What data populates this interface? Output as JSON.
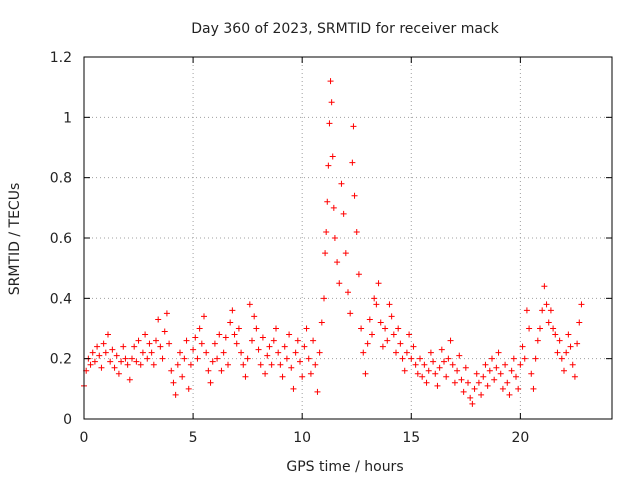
{
  "chart_data": {
    "type": "scatter",
    "title": "Day 360 of 2023, SRMTID for receiver mack",
    "xlabel": "GPS time / hours",
    "ylabel": "SRMTID / TECUs",
    "xlim": [
      0,
      24.2
    ],
    "ylim": [
      0,
      1.2
    ],
    "x_ticks": [
      0,
      5,
      10,
      15,
      20
    ],
    "x_tick_labels": [
      "0",
      "5",
      "10",
      "15",
      "20"
    ],
    "y_ticks": [
      0,
      0.2,
      0.4,
      0.6,
      0.8,
      1.0,
      1.2
    ],
    "y_tick_labels": [
      "0",
      "0.2",
      "0.4",
      "0.6",
      "0.8",
      "1",
      "1.2"
    ],
    "grid": true,
    "marker": "plus",
    "color": "#ff0000",
    "series": [
      {
        "name": "mack",
        "points": [
          [
            0.0,
            0.11
          ],
          [
            0.1,
            0.16
          ],
          [
            0.2,
            0.2
          ],
          [
            0.3,
            0.18
          ],
          [
            0.4,
            0.22
          ],
          [
            0.5,
            0.19
          ],
          [
            0.6,
            0.24
          ],
          [
            0.7,
            0.21
          ],
          [
            0.8,
            0.17
          ],
          [
            0.9,
            0.25
          ],
          [
            1.0,
            0.22
          ],
          [
            1.1,
            0.28
          ],
          [
            1.2,
            0.19
          ],
          [
            1.3,
            0.23
          ],
          [
            1.4,
            0.17
          ],
          [
            1.5,
            0.21
          ],
          [
            1.6,
            0.15
          ],
          [
            1.7,
            0.19
          ],
          [
            1.8,
            0.24
          ],
          [
            1.9,
            0.2
          ],
          [
            2.0,
            0.18
          ],
          [
            2.1,
            0.13
          ],
          [
            2.2,
            0.2
          ],
          [
            2.3,
            0.24
          ],
          [
            2.4,
            0.19
          ],
          [
            2.5,
            0.26
          ],
          [
            2.6,
            0.18
          ],
          [
            2.7,
            0.22
          ],
          [
            2.8,
            0.28
          ],
          [
            2.9,
            0.2
          ],
          [
            3.0,
            0.25
          ],
          [
            3.1,
            0.22
          ],
          [
            3.2,
            0.18
          ],
          [
            3.3,
            0.26
          ],
          [
            3.4,
            0.33
          ],
          [
            3.5,
            0.24
          ],
          [
            3.6,
            0.2
          ],
          [
            3.7,
            0.29
          ],
          [
            3.8,
            0.35
          ],
          [
            3.9,
            0.25
          ],
          [
            4.0,
            0.16
          ],
          [
            4.1,
            0.12
          ],
          [
            4.2,
            0.08
          ],
          [
            4.3,
            0.18
          ],
          [
            4.4,
            0.22
          ],
          [
            4.5,
            0.14
          ],
          [
            4.6,
            0.2
          ],
          [
            4.7,
            0.26
          ],
          [
            4.8,
            0.1
          ],
          [
            4.9,
            0.18
          ],
          [
            5.0,
            0.23
          ],
          [
            5.1,
            0.27
          ],
          [
            5.2,
            0.2
          ],
          [
            5.3,
            0.3
          ],
          [
            5.4,
            0.25
          ],
          [
            5.5,
            0.34
          ],
          [
            5.6,
            0.22
          ],
          [
            5.7,
            0.16
          ],
          [
            5.8,
            0.12
          ],
          [
            5.9,
            0.19
          ],
          [
            6.0,
            0.25
          ],
          [
            6.1,
            0.2
          ],
          [
            6.2,
            0.28
          ],
          [
            6.3,
            0.16
          ],
          [
            6.4,
            0.22
          ],
          [
            6.5,
            0.27
          ],
          [
            6.6,
            0.18
          ],
          [
            6.7,
            0.32
          ],
          [
            6.8,
            0.36
          ],
          [
            6.9,
            0.28
          ],
          [
            7.0,
            0.25
          ],
          [
            7.1,
            0.3
          ],
          [
            7.2,
            0.22
          ],
          [
            7.3,
            0.18
          ],
          [
            7.4,
            0.14
          ],
          [
            7.5,
            0.2
          ],
          [
            7.6,
            0.38
          ],
          [
            7.7,
            0.26
          ],
          [
            7.8,
            0.34
          ],
          [
            7.9,
            0.3
          ],
          [
            8.0,
            0.23
          ],
          [
            8.1,
            0.18
          ],
          [
            8.2,
            0.27
          ],
          [
            8.3,
            0.15
          ],
          [
            8.4,
            0.21
          ],
          [
            8.5,
            0.24
          ],
          [
            8.6,
            0.18
          ],
          [
            8.7,
            0.26
          ],
          [
            8.8,
            0.3
          ],
          [
            8.9,
            0.22
          ],
          [
            9.0,
            0.18
          ],
          [
            9.1,
            0.14
          ],
          [
            9.2,
            0.24
          ],
          [
            9.3,
            0.2
          ],
          [
            9.4,
            0.28
          ],
          [
            9.5,
            0.17
          ],
          [
            9.6,
            0.1
          ],
          [
            9.7,
            0.22
          ],
          [
            9.8,
            0.26
          ],
          [
            9.9,
            0.19
          ],
          [
            10.0,
            0.14
          ],
          [
            10.1,
            0.24
          ],
          [
            10.2,
            0.3
          ],
          [
            10.3,
            0.2
          ],
          [
            10.4,
            0.15
          ],
          [
            10.5,
            0.26
          ],
          [
            10.6,
            0.18
          ],
          [
            10.7,
            0.09
          ],
          [
            10.8,
            0.22
          ],
          [
            10.9,
            0.32
          ],
          [
            11.0,
            0.4
          ],
          [
            11.05,
            0.55
          ],
          [
            11.1,
            0.62
          ],
          [
            11.15,
            0.72
          ],
          [
            11.2,
            0.84
          ],
          [
            11.25,
            0.98
          ],
          [
            11.3,
            1.12
          ],
          [
            11.35,
            1.05
          ],
          [
            11.4,
            0.87
          ],
          [
            11.45,
            0.7
          ],
          [
            11.5,
            0.6
          ],
          [
            11.6,
            0.52
          ],
          [
            11.7,
            0.45
          ],
          [
            11.8,
            0.78
          ],
          [
            11.9,
            0.68
          ],
          [
            12.0,
            0.55
          ],
          [
            12.1,
            0.42
          ],
          [
            12.2,
            0.35
          ],
          [
            12.3,
            0.85
          ],
          [
            12.35,
            0.97
          ],
          [
            12.4,
            0.74
          ],
          [
            12.5,
            0.62
          ],
          [
            12.6,
            0.48
          ],
          [
            12.7,
            0.3
          ],
          [
            12.8,
            0.22
          ],
          [
            12.9,
            0.15
          ],
          [
            13.0,
            0.25
          ],
          [
            13.1,
            0.33
          ],
          [
            13.2,
            0.28
          ],
          [
            13.3,
            0.4
          ],
          [
            13.4,
            0.38
          ],
          [
            13.5,
            0.45
          ],
          [
            13.6,
            0.32
          ],
          [
            13.7,
            0.24
          ],
          [
            13.8,
            0.3
          ],
          [
            13.9,
            0.26
          ],
          [
            14.0,
            0.38
          ],
          [
            14.1,
            0.34
          ],
          [
            14.2,
            0.28
          ],
          [
            14.3,
            0.22
          ],
          [
            14.4,
            0.3
          ],
          [
            14.5,
            0.25
          ],
          [
            14.6,
            0.2
          ],
          [
            14.7,
            0.16
          ],
          [
            14.8,
            0.22
          ],
          [
            14.9,
            0.28
          ],
          [
            15.0,
            0.2
          ],
          [
            15.1,
            0.24
          ],
          [
            15.2,
            0.18
          ],
          [
            15.3,
            0.15
          ],
          [
            15.4,
            0.2
          ],
          [
            15.5,
            0.14
          ],
          [
            15.6,
            0.18
          ],
          [
            15.7,
            0.12
          ],
          [
            15.8,
            0.16
          ],
          [
            15.9,
            0.22
          ],
          [
            16.0,
            0.19
          ],
          [
            16.1,
            0.15
          ],
          [
            16.2,
            0.11
          ],
          [
            16.3,
            0.17
          ],
          [
            16.4,
            0.23
          ],
          [
            16.5,
            0.19
          ],
          [
            16.6,
            0.14
          ],
          [
            16.7,
            0.2
          ],
          [
            16.8,
            0.26
          ],
          [
            16.9,
            0.18
          ],
          [
            17.0,
            0.12
          ],
          [
            17.1,
            0.16
          ],
          [
            17.2,
            0.21
          ],
          [
            17.3,
            0.13
          ],
          [
            17.4,
            0.09
          ],
          [
            17.5,
            0.17
          ],
          [
            17.6,
            0.12
          ],
          [
            17.7,
            0.07
          ],
          [
            17.8,
            0.05
          ],
          [
            17.9,
            0.1
          ],
          [
            18.0,
            0.15
          ],
          [
            18.1,
            0.12
          ],
          [
            18.2,
            0.08
          ],
          [
            18.3,
            0.14
          ],
          [
            18.4,
            0.18
          ],
          [
            18.5,
            0.11
          ],
          [
            18.6,
            0.16
          ],
          [
            18.7,
            0.2
          ],
          [
            18.8,
            0.13
          ],
          [
            18.9,
            0.17
          ],
          [
            19.0,
            0.22
          ],
          [
            19.1,
            0.15
          ],
          [
            19.2,
            0.1
          ],
          [
            19.3,
            0.18
          ],
          [
            19.4,
            0.12
          ],
          [
            19.5,
            0.08
          ],
          [
            19.6,
            0.16
          ],
          [
            19.7,
            0.2
          ],
          [
            19.8,
            0.14
          ],
          [
            19.9,
            0.1
          ],
          [
            20.0,
            0.18
          ],
          [
            20.1,
            0.24
          ],
          [
            20.2,
            0.2
          ],
          [
            20.3,
            0.36
          ],
          [
            20.4,
            0.3
          ],
          [
            20.5,
            0.15
          ],
          [
            20.6,
            0.1
          ],
          [
            20.7,
            0.2
          ],
          [
            20.8,
            0.26
          ],
          [
            20.9,
            0.3
          ],
          [
            21.0,
            0.36
          ],
          [
            21.1,
            0.44
          ],
          [
            21.2,
            0.38
          ],
          [
            21.3,
            0.32
          ],
          [
            21.4,
            0.36
          ],
          [
            21.5,
            0.3
          ],
          [
            21.6,
            0.28
          ],
          [
            21.7,
            0.22
          ],
          [
            21.8,
            0.26
          ],
          [
            21.9,
            0.2
          ],
          [
            22.0,
            0.16
          ],
          [
            22.1,
            0.22
          ],
          [
            22.2,
            0.28
          ],
          [
            22.3,
            0.24
          ],
          [
            22.4,
            0.18
          ],
          [
            22.5,
            0.14
          ],
          [
            22.6,
            0.25
          ],
          [
            22.7,
            0.32
          ],
          [
            22.8,
            0.38
          ]
        ]
      }
    ]
  }
}
